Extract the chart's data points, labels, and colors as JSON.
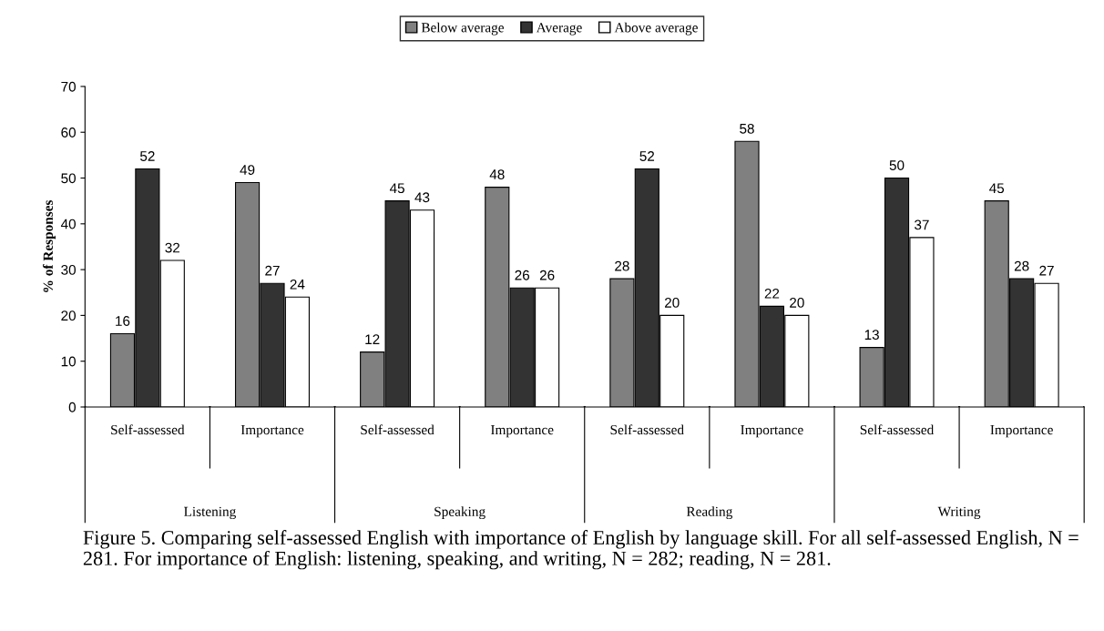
{
  "chart_data": {
    "type": "bar",
    "ylabel": "% of Responses",
    "categories": [
      "Self-assessed",
      "Importance",
      "Self-assessed",
      "Importance",
      "Self-assessed",
      "Importance",
      "Self-assessed",
      "Importance"
    ],
    "series": [
      {
        "name": "Below average",
        "color": "#808080",
        "values": [
          16,
          49,
          12,
          48,
          28,
          58,
          13,
          45
        ]
      },
      {
        "name": "Average",
        "color": "#333333",
        "values": [
          52,
          27,
          45,
          26,
          52,
          22,
          50,
          28
        ]
      },
      {
        "name": "Above average",
        "color": "#ffffff",
        "values": [
          32,
          24,
          43,
          26,
          20,
          20,
          37,
          27
        ]
      }
    ],
    "ylim": [
      0,
      70
    ],
    "yticks": [
      0,
      10,
      20,
      30,
      40,
      50,
      60,
      70
    ],
    "data_labels": true,
    "grid": false,
    "legend": "top",
    "annotations": [
      "Listening",
      "Speaking",
      "Reading",
      "Writing",
      "Figure 5. Comparing self-assessed English with importance of English by language skill. For all self-assessed English, N = 281. For importance of English: listening, speaking, and writing, N = 282; reading, N = 281."
    ]
  }
}
